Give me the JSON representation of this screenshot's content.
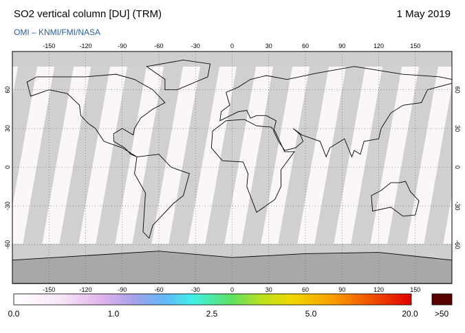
{
  "header": {
    "title": "SO2 vertical column [DU] (TRM)",
    "date": "1 May 2019",
    "subtitle": "OMI  –  KNMI/FMI/NASA"
  },
  "map": {
    "lon_ticks": [
      -150,
      -120,
      -90,
      -60,
      -30,
      0,
      30,
      60,
      90,
      120,
      150
    ],
    "lat_ticks": [
      -60,
      -30,
      0,
      30,
      60
    ]
  },
  "colorbar": {
    "labels": [
      "0.0",
      "1.0",
      "2.5",
      "5.0",
      "20.0",
      ">50"
    ]
  }
}
